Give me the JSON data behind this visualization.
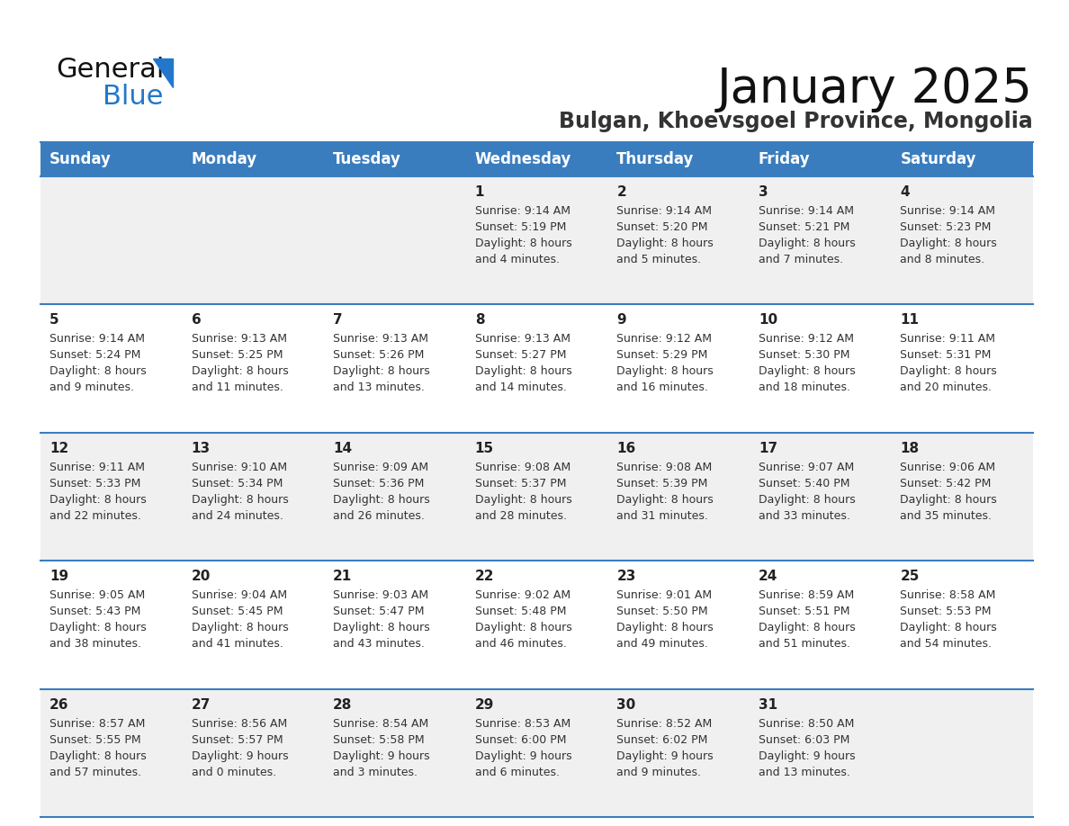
{
  "title": "January 2025",
  "subtitle": "Bulgan, Khoevsgoel Province, Mongolia",
  "days_of_week": [
    "Sunday",
    "Monday",
    "Tuesday",
    "Wednesday",
    "Thursday",
    "Friday",
    "Saturday"
  ],
  "header_bg": "#3a7dbf",
  "header_text_color": "#ffffff",
  "row_bg_odd": "#f0f0f0",
  "row_bg_even": "#ffffff",
  "cell_text_color": "#333333",
  "day_num_color": "#222222",
  "separator_color": "#3a7dbf",
  "logo_general_color": "#111111",
  "logo_blue_color": "#2277cc",
  "title_fontsize": 38,
  "subtitle_fontsize": 17,
  "header_fontsize": 12,
  "day_num_fontsize": 11,
  "cell_fontsize": 9,
  "weeks": [
    [
      {
        "day": null,
        "sunrise": null,
        "sunset": null,
        "daylight": ""
      },
      {
        "day": null,
        "sunrise": null,
        "sunset": null,
        "daylight": ""
      },
      {
        "day": null,
        "sunrise": null,
        "sunset": null,
        "daylight": ""
      },
      {
        "day": 1,
        "sunrise": "9:14 AM",
        "sunset": "5:19 PM",
        "daylight": "8 hours\nand 4 minutes."
      },
      {
        "day": 2,
        "sunrise": "9:14 AM",
        "sunset": "5:20 PM",
        "daylight": "8 hours\nand 5 minutes."
      },
      {
        "day": 3,
        "sunrise": "9:14 AM",
        "sunset": "5:21 PM",
        "daylight": "8 hours\nand 7 minutes."
      },
      {
        "day": 4,
        "sunrise": "9:14 AM",
        "sunset": "5:23 PM",
        "daylight": "8 hours\nand 8 minutes."
      }
    ],
    [
      {
        "day": 5,
        "sunrise": "9:14 AM",
        "sunset": "5:24 PM",
        "daylight": "8 hours\nand 9 minutes."
      },
      {
        "day": 6,
        "sunrise": "9:13 AM",
        "sunset": "5:25 PM",
        "daylight": "8 hours\nand 11 minutes."
      },
      {
        "day": 7,
        "sunrise": "9:13 AM",
        "sunset": "5:26 PM",
        "daylight": "8 hours\nand 13 minutes."
      },
      {
        "day": 8,
        "sunrise": "9:13 AM",
        "sunset": "5:27 PM",
        "daylight": "8 hours\nand 14 minutes."
      },
      {
        "day": 9,
        "sunrise": "9:12 AM",
        "sunset": "5:29 PM",
        "daylight": "8 hours\nand 16 minutes."
      },
      {
        "day": 10,
        "sunrise": "9:12 AM",
        "sunset": "5:30 PM",
        "daylight": "8 hours\nand 18 minutes."
      },
      {
        "day": 11,
        "sunrise": "9:11 AM",
        "sunset": "5:31 PM",
        "daylight": "8 hours\nand 20 minutes."
      }
    ],
    [
      {
        "day": 12,
        "sunrise": "9:11 AM",
        "sunset": "5:33 PM",
        "daylight": "8 hours\nand 22 minutes."
      },
      {
        "day": 13,
        "sunrise": "9:10 AM",
        "sunset": "5:34 PM",
        "daylight": "8 hours\nand 24 minutes."
      },
      {
        "day": 14,
        "sunrise": "9:09 AM",
        "sunset": "5:36 PM",
        "daylight": "8 hours\nand 26 minutes."
      },
      {
        "day": 15,
        "sunrise": "9:08 AM",
        "sunset": "5:37 PM",
        "daylight": "8 hours\nand 28 minutes."
      },
      {
        "day": 16,
        "sunrise": "9:08 AM",
        "sunset": "5:39 PM",
        "daylight": "8 hours\nand 31 minutes."
      },
      {
        "day": 17,
        "sunrise": "9:07 AM",
        "sunset": "5:40 PM",
        "daylight": "8 hours\nand 33 minutes."
      },
      {
        "day": 18,
        "sunrise": "9:06 AM",
        "sunset": "5:42 PM",
        "daylight": "8 hours\nand 35 minutes."
      }
    ],
    [
      {
        "day": 19,
        "sunrise": "9:05 AM",
        "sunset": "5:43 PM",
        "daylight": "8 hours\nand 38 minutes."
      },
      {
        "day": 20,
        "sunrise": "9:04 AM",
        "sunset": "5:45 PM",
        "daylight": "8 hours\nand 41 minutes."
      },
      {
        "day": 21,
        "sunrise": "9:03 AM",
        "sunset": "5:47 PM",
        "daylight": "8 hours\nand 43 minutes."
      },
      {
        "day": 22,
        "sunrise": "9:02 AM",
        "sunset": "5:48 PM",
        "daylight": "8 hours\nand 46 minutes."
      },
      {
        "day": 23,
        "sunrise": "9:01 AM",
        "sunset": "5:50 PM",
        "daylight": "8 hours\nand 49 minutes."
      },
      {
        "day": 24,
        "sunrise": "8:59 AM",
        "sunset": "5:51 PM",
        "daylight": "8 hours\nand 51 minutes."
      },
      {
        "day": 25,
        "sunrise": "8:58 AM",
        "sunset": "5:53 PM",
        "daylight": "8 hours\nand 54 minutes."
      }
    ],
    [
      {
        "day": 26,
        "sunrise": "8:57 AM",
        "sunset": "5:55 PM",
        "daylight": "8 hours\nand 57 minutes."
      },
      {
        "day": 27,
        "sunrise": "8:56 AM",
        "sunset": "5:57 PM",
        "daylight": "9 hours\nand 0 minutes."
      },
      {
        "day": 28,
        "sunrise": "8:54 AM",
        "sunset": "5:58 PM",
        "daylight": "9 hours\nand 3 minutes."
      },
      {
        "day": 29,
        "sunrise": "8:53 AM",
        "sunset": "6:00 PM",
        "daylight": "9 hours\nand 6 minutes."
      },
      {
        "day": 30,
        "sunrise": "8:52 AM",
        "sunset": "6:02 PM",
        "daylight": "9 hours\nand 9 minutes."
      },
      {
        "day": 31,
        "sunrise": "8:50 AM",
        "sunset": "6:03 PM",
        "daylight": "9 hours\nand 13 minutes."
      },
      {
        "day": null,
        "sunrise": null,
        "sunset": null,
        "daylight": ""
      }
    ]
  ]
}
